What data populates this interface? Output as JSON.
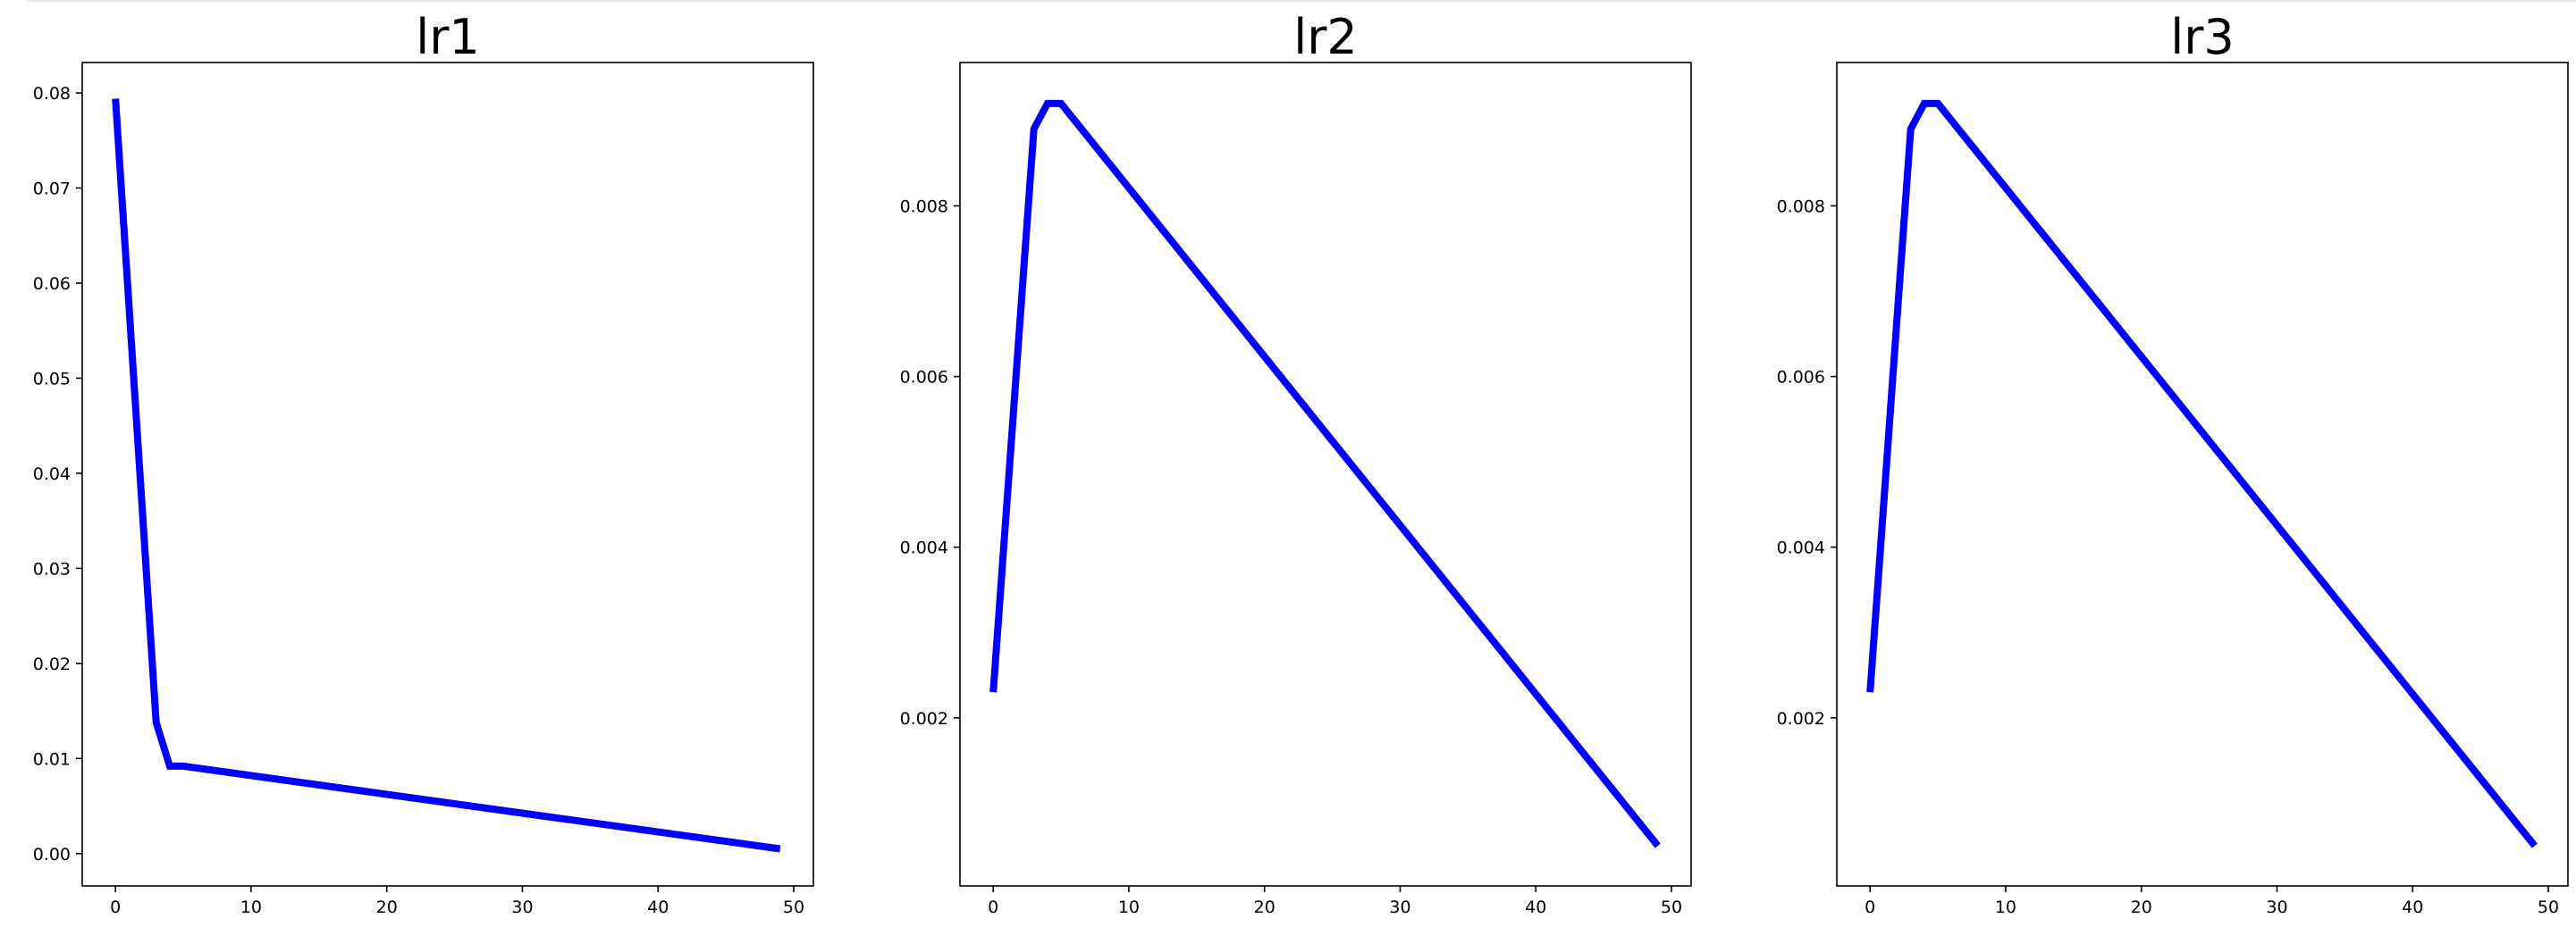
{
  "style": {
    "line_color": "#0000ff",
    "axes_color": "#000000",
    "text_color": "#000000",
    "background": "#ffffff"
  },
  "chart_data": [
    {
      "type": "line",
      "title": "lr1",
      "xlabel": "",
      "ylabel": "",
      "grid": false,
      "xlim": [
        -2.45,
        51.45
      ],
      "ylim": [
        -0.0034,
        0.0832
      ],
      "xticks": [
        0,
        10,
        20,
        30,
        40,
        50
      ],
      "yticks": [
        0.0,
        0.01,
        0.02,
        0.03,
        0.04,
        0.05,
        0.06,
        0.07,
        0.08
      ],
      "xtick_labels": [
        "0",
        "10",
        "20",
        "30",
        "40",
        "50"
      ],
      "ytick_labels": [
        "0.00",
        "0.01",
        "0.02",
        "0.03",
        "0.04",
        "0.05",
        "0.06",
        "0.07",
        "0.08"
      ],
      "series": [
        {
          "x": [
            0,
            3,
            4,
            5,
            49
          ],
          "y": [
            0.0794,
            0.0138,
            0.0092,
            0.0092,
            0.0005
          ]
        }
      ]
    },
    {
      "type": "line",
      "title": "lr2",
      "xlabel": "",
      "ylabel": "",
      "grid": false,
      "xlim": [
        -2.45,
        51.45
      ],
      "ylim": [
        3e-05,
        0.00968
      ],
      "xticks": [
        0,
        10,
        20,
        30,
        40,
        50
      ],
      "yticks": [
        0.002,
        0.004,
        0.006,
        0.008
      ],
      "xtick_labels": [
        "0",
        "10",
        "20",
        "30",
        "40",
        "50"
      ],
      "ytick_labels": [
        "0.002",
        "0.004",
        "0.006",
        "0.008"
      ],
      "series": [
        {
          "x": [
            0,
            1,
            2,
            3,
            4,
            5,
            49
          ],
          "y": [
            0.0023,
            0.0045,
            0.0067,
            0.0089,
            0.0092,
            0.0092,
            0.0005
          ]
        }
      ]
    },
    {
      "type": "line",
      "title": "lr3",
      "xlabel": "",
      "ylabel": "",
      "grid": false,
      "xlim": [
        -2.45,
        51.45
      ],
      "ylim": [
        3e-05,
        0.00968
      ],
      "xticks": [
        0,
        10,
        20,
        30,
        40,
        50
      ],
      "yticks": [
        0.002,
        0.004,
        0.006,
        0.008
      ],
      "xtick_labels": [
        "0",
        "10",
        "20",
        "30",
        "40",
        "50"
      ],
      "ytick_labels": [
        "0.002",
        "0.004",
        "0.006",
        "0.008"
      ],
      "series": [
        {
          "x": [
            0,
            1,
            2,
            3,
            4,
            5,
            49
          ],
          "y": [
            0.0023,
            0.0045,
            0.0067,
            0.0089,
            0.0092,
            0.0092,
            0.0005
          ]
        }
      ]
    }
  ]
}
